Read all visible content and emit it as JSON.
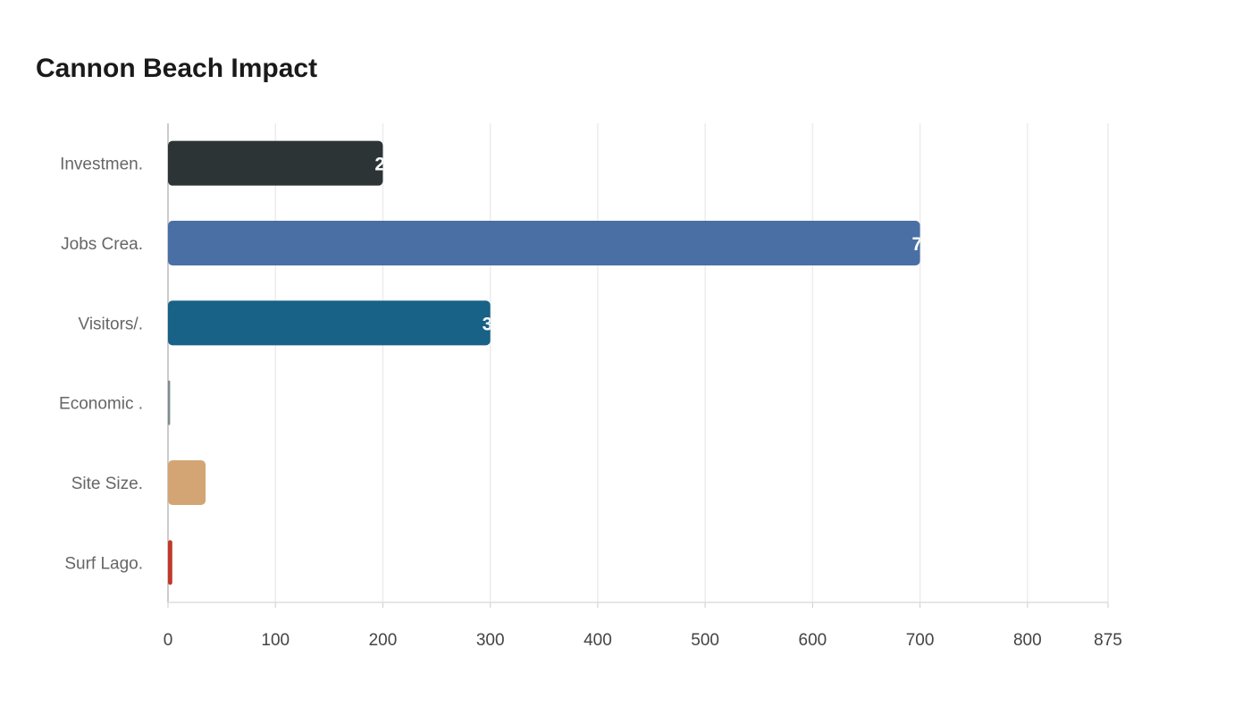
{
  "chart_data": {
    "type": "bar",
    "orientation": "horizontal",
    "title": "Cannon Beach Impact",
    "categories": [
      "Investmen.",
      "Jobs Crea.",
      "Visitors/.",
      "Economic .",
      "Site Size.",
      "Surf Lago."
    ],
    "values": [
      200,
      700,
      300,
      2,
      35,
      4
    ],
    "colors": [
      "#2d3436",
      "#4a6fa5",
      "#186187",
      "#7f8c8d",
      "#d4a574",
      "#c0392b"
    ],
    "xlim": [
      0,
      875
    ],
    "xticks": [
      0,
      100,
      200,
      300,
      400,
      500,
      600,
      700,
      800,
      875
    ],
    "grid": true,
    "xlabel": "",
    "ylabel": ""
  }
}
